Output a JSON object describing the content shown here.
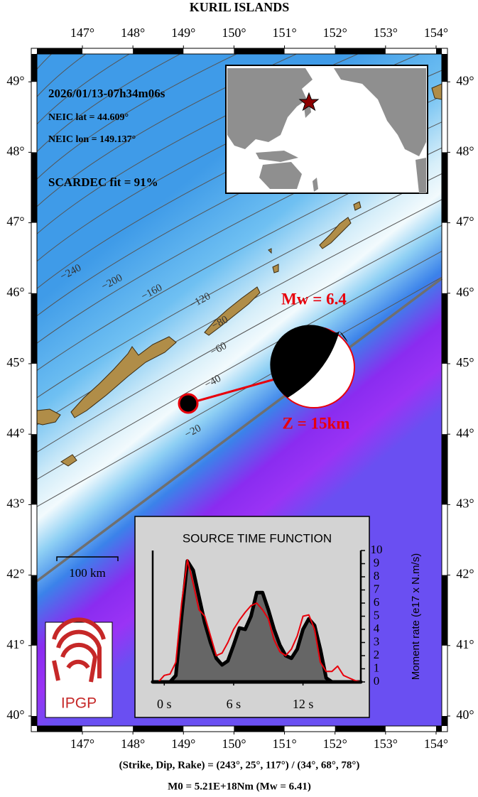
{
  "title": "KURIL ISLANDS",
  "map": {
    "lon_ticks": [
      {
        "value": 147,
        "label": "147°"
      },
      {
        "value": 148,
        "label": "148°"
      },
      {
        "value": 149,
        "label": "149°"
      },
      {
        "value": 150,
        "label": "150°"
      },
      {
        "value": 151,
        "label": "151°"
      },
      {
        "value": 152,
        "label": "152°"
      },
      {
        "value": 153,
        "label": "153°"
      },
      {
        "value": 154,
        "label": "154°"
      }
    ],
    "lat_ticks": [
      {
        "value": 40,
        "label": "40°"
      },
      {
        "value": 41,
        "label": "41°"
      },
      {
        "value": 42,
        "label": "42°"
      },
      {
        "value": 43,
        "label": "43°"
      },
      {
        "value": 44,
        "label": "44°"
      },
      {
        "value": 45,
        "label": "45°"
      },
      {
        "value": 46,
        "label": "46°"
      },
      {
        "value": 47,
        "label": "47°"
      },
      {
        "value": 48,
        "label": "48°"
      },
      {
        "value": 49,
        "label": "49°"
      }
    ],
    "contour_labels": [
      "−240",
      "−200",
      "−160",
      "−120",
      "−80",
      "−60",
      "−40",
      "−20"
    ],
    "scale_bar": "100 km",
    "logo": "IPGP"
  },
  "event": {
    "datetime": "2026/01/13-07h34m06s",
    "lat": "NEIC lat  = 44.609°",
    "lon": "NEIC lon = 149.137°",
    "fit": "SCARDEC fit = 91%",
    "magnitude": "Mw = 6.4",
    "depth": "Z =  15km"
  },
  "footer": {
    "mechanism": "(Strike, Dip, Rake) = (243°, 25°, 117°) / (34°, 68°, 78°)",
    "moment": "M0 = 5.21E+18Nm  (Mw = 6.41)"
  },
  "chart_data": {
    "type": "area",
    "title": "SOURCE TIME FUNCTION",
    "y_label": "Moment rate (e17 x N.m/s)",
    "x": [
      -1,
      -0.5,
      0,
      0.5,
      1,
      1.5,
      2,
      2.5,
      3,
      3.5,
      4,
      4.5,
      5,
      5.5,
      6,
      6.5,
      7,
      7.5,
      8,
      8.5,
      9,
      9.5,
      10,
      10.5,
      11,
      11.5,
      12,
      12.5,
      13,
      13.5,
      14,
      14.5,
      15,
      15.5,
      16,
      16.5,
      17
    ],
    "series": [
      {
        "color": "#000000",
        "fill": "#666666",
        "values": [
          0,
          0,
          0,
          0,
          0.5,
          5,
          9.2,
          8.5,
          6.5,
          4.5,
          3,
          1.8,
          1.3,
          1.6,
          2.8,
          4.1,
          4.0,
          5,
          6.8,
          6.8,
          5.5,
          4.0,
          2.8,
          2.0,
          1.8,
          2.5,
          4.0,
          4.8,
          4.3,
          2.5,
          0.3,
          0,
          0,
          0,
          0,
          0,
          0
        ]
      },
      {
        "color": "#e8000b",
        "values": [
          0,
          0,
          0.5,
          0.6,
          1.5,
          6,
          9.3,
          7.5,
          5.5,
          5,
          3.5,
          2,
          2.2,
          3,
          4,
          4.7,
          5.3,
          5.8,
          6,
          5.5,
          4.8,
          3.2,
          2.3,
          2.0,
          2.5,
          3.5,
          5.0,
          5.1,
          4,
          1.5,
          0.8,
          0.8,
          1.2,
          0.5,
          0.3,
          0.1,
          0
        ]
      }
    ],
    "xlim": [
      -1,
      17
    ],
    "xticks": [
      {
        "value": 0,
        "label": "0 s"
      },
      {
        "value": 6,
        "label": "6 s"
      },
      {
        "value": 12,
        "label": "12 s"
      }
    ],
    "ylim": [
      0,
      10
    ],
    "yticks": [
      0,
      1,
      2,
      3,
      4,
      5,
      6,
      7,
      8,
      9,
      10
    ]
  }
}
